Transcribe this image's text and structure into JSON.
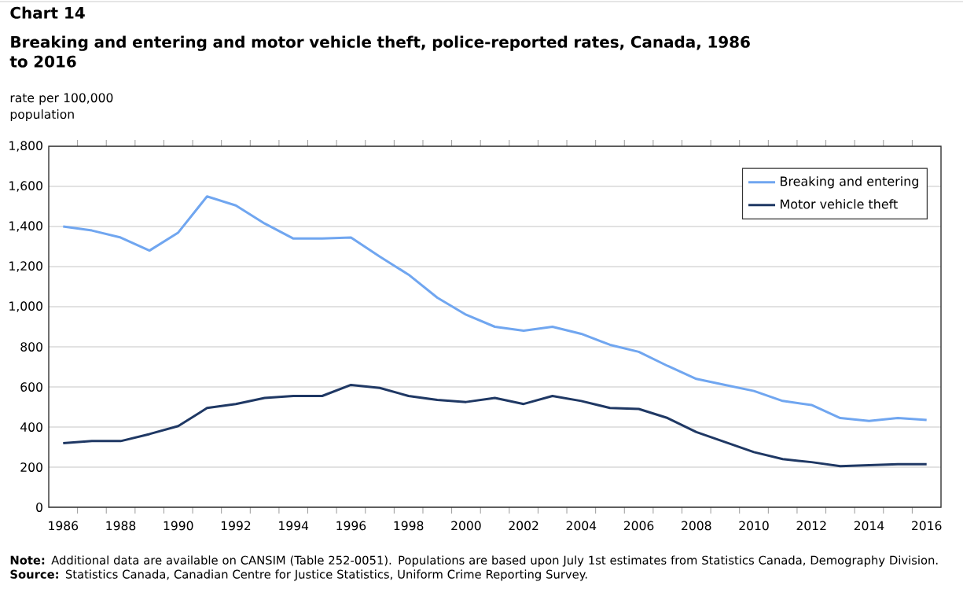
{
  "chart_data": {
    "type": "line",
    "title": "Chart 14",
    "subtitle": "Breaking and entering and motor vehicle theft, police-reported rates, Canada, 1986 to 2016",
    "ylabel": "rate per 100,000 population",
    "categories": [
      "1986",
      null,
      "1988",
      null,
      "1990",
      null,
      "1992",
      null,
      "1994",
      null,
      "1996",
      null,
      "1998",
      null,
      "2000",
      null,
      "2002",
      null,
      "2004",
      null,
      "2006",
      null,
      "2008",
      null,
      "2010",
      null,
      "2012",
      null,
      "2014",
      null,
      "2016"
    ],
    "series": [
      {
        "name": "Breaking and entering",
        "color": "#70a6f0",
        "values": [
          1400,
          1380,
          1345,
          1280,
          1370,
          1550,
          1505,
          1415,
          1340,
          1340,
          1345,
          1250,
          1160,
          1045,
          960,
          900,
          880,
          900,
          865,
          810,
          775,
          705,
          640,
          610,
          580,
          530,
          510,
          445,
          430,
          445,
          435
        ]
      },
      {
        "name": "Motor vehicle theft",
        "color": "#1f3864",
        "values": [
          320,
          330,
          330,
          365,
          405,
          495,
          515,
          545,
          555,
          555,
          610,
          595,
          555,
          535,
          525,
          545,
          515,
          555,
          530,
          495,
          490,
          445,
          375,
          325,
          275,
          240,
          225,
          205,
          210,
          215,
          215
        ]
      }
    ],
    "ylim": [
      0,
      1800
    ],
    "yticks": [
      0,
      200,
      400,
      600,
      800,
      {
        "value": 1000,
        "label": "1,000"
      },
      {
        "value": 1200,
        "label": "1,200"
      },
      {
        "value": 1400,
        "label": "1,400"
      },
      {
        "value": 1600,
        "label": "1,600"
      },
      {
        "value": 1800,
        "label": "1,800"
      }
    ],
    "grid": "y",
    "legend": "top right",
    "annotations": [
      "**Note:** Additional data are available on CANSIM (Table 252-0051). Populations are based upon July 1st estimates from Statistics Canada, Demography Division.",
      "**Source:** Statistics Canada, Canadian Centre for Justice Statistics, Uniform Crime Reporting Survey."
    ]
  }
}
